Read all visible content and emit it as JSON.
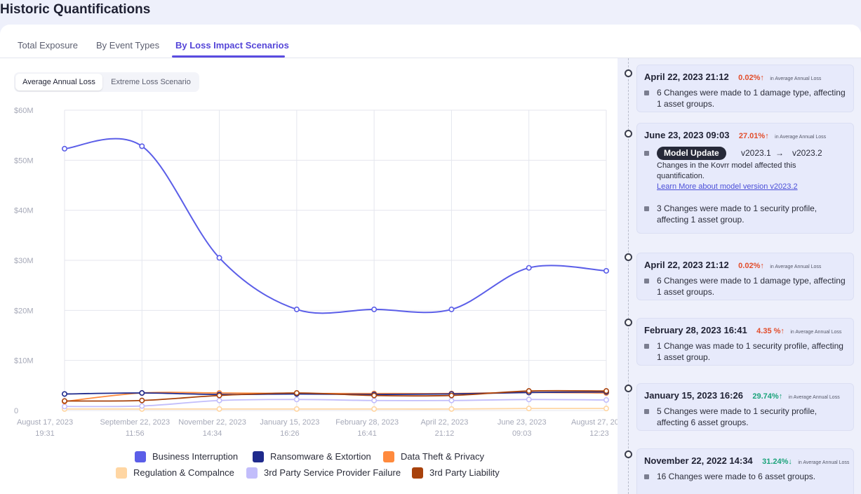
{
  "page": {
    "title": "Historic Quantifications"
  },
  "tabs": [
    {
      "label": "Total Exposure"
    },
    {
      "label": "By Event Types"
    },
    {
      "label": "By Loss Impact Scenarios"
    }
  ],
  "toggle": {
    "options": [
      "Average Annual Loss",
      "Extreme Loss Scenario"
    ],
    "selected": "Average Annual Loss"
  },
  "colors": {
    "accent": "#5a4ce0",
    "up": "#e24d2b",
    "down": "#1aa37a"
  },
  "chart_data": {
    "type": "line",
    "ylim": [
      0,
      60
    ],
    "yticks": [
      {
        "v": 60,
        "label": "$60M"
      },
      {
        "v": 50,
        "label": "$50M"
      },
      {
        "v": 40,
        "label": "$40M"
      },
      {
        "v": 30,
        "label": "$30M"
      },
      {
        "v": 20,
        "label": "$20M"
      },
      {
        "v": 10,
        "label": "$10M"
      },
      {
        "v": 0,
        "label": "0"
      }
    ],
    "categories": [
      [
        "August 17, 2023",
        "19:31"
      ],
      [
        "September 22, 2023",
        "11:56"
      ],
      [
        "November 22, 2023",
        "14:34"
      ],
      [
        "January 15, 2023",
        "16:26"
      ],
      [
        "February 28, 2023",
        "16:41"
      ],
      [
        "April 22, 2023",
        "21:12"
      ],
      [
        "June 23, 2023",
        "09:03"
      ],
      [
        "August 27, 2023",
        "12:23"
      ]
    ],
    "grid": true,
    "legend_position": "bottom",
    "series": [
      {
        "name": "Business Interruption",
        "color": "#5b5ee8",
        "values": [
          52.3,
          52.8,
          30.5,
          20.2,
          20.2,
          20.2,
          28.5,
          27.9
        ]
      },
      {
        "name": "Ransomware & Extortion",
        "color": "#1f2a8c",
        "values": [
          3.3,
          3.5,
          3.2,
          3.3,
          3.2,
          3.3,
          3.6,
          3.7
        ]
      },
      {
        "name": "Data Theft & Privacy",
        "color": "#ff8a3d",
        "values": [
          1.8,
          3.5,
          3.5,
          3.4,
          3.4,
          3.4,
          3.6,
          3.5
        ]
      },
      {
        "name": "Regulation & Compalnce",
        "color": "#ffd6a3",
        "values": [
          0.3,
          0.3,
          0.3,
          0.3,
          0.3,
          0.3,
          0.4,
          0.4
        ]
      },
      {
        "name": "3rd Party Service Provider Failure",
        "color": "#c2bdfb",
        "values": [
          0.8,
          0.9,
          2.0,
          2.2,
          2.0,
          2.0,
          2.2,
          2.1
        ]
      },
      {
        "name": "3rd Party Liability",
        "color": "#a8420c",
        "values": [
          1.9,
          2.0,
          3.0,
          3.5,
          3.0,
          3.0,
          3.9,
          3.9
        ]
      }
    ]
  },
  "timeline": [
    {
      "date": "April 22, 2023 21:12",
      "pct": "0.02%",
      "arrow": "↑",
      "dir": "up",
      "metric": "in Average Annual Loss",
      "changes": [
        "6 Changes were made to 1 damage type, affecting 1 asset groups."
      ]
    },
    {
      "date": "June 23, 2023 09:03",
      "pct": "27.01%",
      "arrow": "↑",
      "dir": "up",
      "metric": "in Average Annual Loss",
      "model_update": {
        "pill": "Model Update",
        "from": "v2023.1",
        "arrow": "→",
        "to": "v2023.2",
        "description": "Changes in the Kovrr model affected this quantification.",
        "link": "Learn More about model version v2023.2"
      },
      "changes": [
        "3 Changes were made to 1 security profile, affecting 1 asset group."
      ]
    },
    {
      "date": "April 22, 2023 21:12",
      "pct": "0.02%",
      "arrow": "↑",
      "dir": "up",
      "metric": "in Average Annual Loss",
      "changes": [
        "6 Changes were made to 1 damage type, affecting 1 asset groups."
      ]
    },
    {
      "date": "February 28, 2023 16:41",
      "pct": "4.35 %",
      "arrow": "↑",
      "dir": "up",
      "metric": "in Average Annual Loss",
      "changes": [
        "1 Change was made to 1 security profile, affecting 1 asset group."
      ]
    },
    {
      "date": "January 15, 2023 16:26",
      "pct": "29.74%",
      "arrow": "↑",
      "dir": "down",
      "metric": "in Average Annual Loss",
      "changes": [
        "5 Changes were made to 1 security profile, affecting 6 asset groups."
      ]
    },
    {
      "date": "November 22, 2022 14:34",
      "pct": "31.24%",
      "arrow": "↓",
      "dir": "down",
      "metric": "in Average Annual Loss",
      "changes": [
        "16 Changes were made to 6 asset groups."
      ]
    }
  ]
}
